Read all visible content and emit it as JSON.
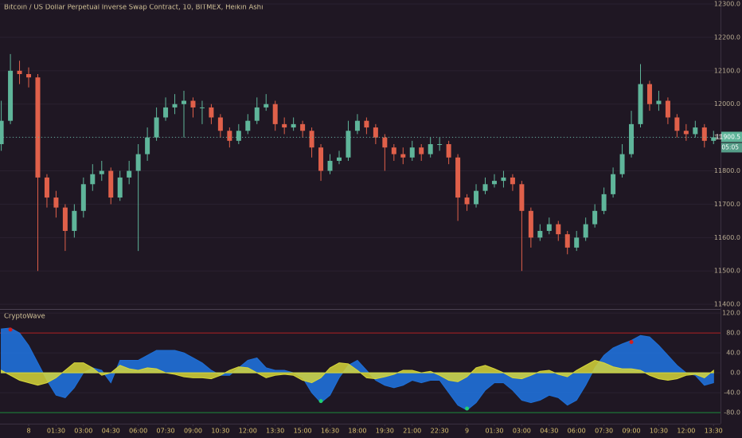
{
  "chart_data": [
    {
      "type": "candlestick",
      "title": "Bitcoin / US Dollar Perpetual Inverse Swap Contract, 10, BITMEX, Heikin Ashi",
      "categories": [
        null,
        null,
        null,
        "8",
        null,
        null,
        "01:30",
        null,
        null,
        "03:00",
        null,
        null,
        "04:30",
        null,
        null,
        "06:00",
        null,
        null,
        "07:30",
        null,
        null,
        "09:00",
        null,
        null,
        "10:30",
        null,
        null,
        "12:00",
        null,
        null,
        "13:30",
        null,
        null,
        "15:00",
        null,
        null,
        "16:30",
        null,
        null,
        "18:00",
        null,
        null,
        "19:30",
        null,
        null,
        "21:00",
        null,
        null,
        "22:30",
        null,
        null,
        "9",
        null,
        null,
        "01:30",
        null,
        null,
        "03:00",
        null,
        null,
        "04:30",
        null,
        null,
        "06:00",
        null,
        null,
        "07:30",
        null,
        null,
        "09:00",
        null,
        null,
        "10:30",
        null,
        null,
        "12:00",
        null,
        null,
        "13:30"
      ],
      "open": [
        11880,
        11950,
        12100,
        12090,
        12080,
        11780,
        11720,
        11690,
        11620,
        11680,
        11760,
        11790,
        11800,
        11720,
        11780,
        11800,
        11850,
        11900,
        11960,
        11990,
        12000,
        12010,
        11990,
        11990,
        11960,
        11920,
        11890,
        11920,
        11950,
        11990,
        12000,
        11940,
        11930,
        11940,
        11920,
        11870,
        11800,
        11830,
        11840,
        11920,
        11950,
        11930,
        11900,
        11870,
        11850,
        11840,
        11870,
        11850,
        11880,
        11880,
        11840,
        11720,
        11700,
        11740,
        11760,
        11770,
        11780,
        11760,
        11680,
        11600,
        11620,
        11640,
        11610,
        11570,
        11600,
        11640,
        11680,
        11730,
        11790,
        11850,
        11940,
        12060,
        12000,
        12010,
        11960,
        11920,
        11910,
        11930,
        11890
      ],
      "high": [
        12010,
        12150,
        12130,
        12110,
        12090,
        11790,
        11740,
        11700,
        11700,
        11780,
        11820,
        11830,
        11810,
        11800,
        11830,
        11880,
        11930,
        11990,
        12020,
        12030,
        12040,
        12020,
        12010,
        12000,
        11970,
        11930,
        11940,
        11970,
        12020,
        12030,
        12010,
        11960,
        11960,
        11950,
        11930,
        11880,
        11850,
        11860,
        11950,
        11970,
        11960,
        11940,
        11910,
        11880,
        11870,
        11890,
        11880,
        11900,
        11900,
        11890,
        11850,
        11730,
        11760,
        11780,
        11790,
        11800,
        11790,
        11770,
        11690,
        11640,
        11660,
        11650,
        11620,
        11620,
        11660,
        11700,
        11750,
        11810,
        11880,
        11980,
        12120,
        12070,
        12040,
        12020,
        11970,
        11940,
        11950,
        11940,
        11920
      ],
      "low": [
        11860,
        11940,
        12060,
        12050,
        11500,
        11690,
        11660,
        11560,
        11600,
        11660,
        11740,
        11770,
        11700,
        11710,
        11760,
        11560,
        11830,
        11890,
        11950,
        11970,
        11900,
        11960,
        11940,
        11940,
        11900,
        11870,
        11880,
        11910,
        11940,
        11980,
        11920,
        11910,
        11920,
        11900,
        11840,
        11770,
        11790,
        11820,
        11830,
        11910,
        11910,
        11880,
        11800,
        11830,
        11820,
        11830,
        11830,
        11840,
        11860,
        11820,
        11650,
        11680,
        11690,
        11730,
        11750,
        11750,
        11740,
        11500,
        11570,
        11590,
        11610,
        11590,
        11550,
        11560,
        11590,
        11630,
        11670,
        11720,
        11780,
        11840,
        11930,
        11980,
        11980,
        11940,
        11900,
        11890,
        11900,
        11870,
        11880
      ],
      "close": [
        11950,
        12100,
        12090,
        12080,
        11780,
        11720,
        11690,
        11620,
        11680,
        11760,
        11790,
        11800,
        11720,
        11780,
        11800,
        11850,
        11900,
        11960,
        11990,
        12000,
        12010,
        11990,
        11990,
        11960,
        11920,
        11890,
        11920,
        11950,
        11990,
        12000,
        11940,
        11930,
        11940,
        11920,
        11870,
        11800,
        11830,
        11840,
        11920,
        11950,
        11930,
        11900,
        11870,
        11850,
        11840,
        11870,
        11850,
        11880,
        11880,
        11840,
        11720,
        11700,
        11740,
        11760,
        11770,
        11780,
        11760,
        11680,
        11600,
        11620,
        11640,
        11610,
        11570,
        11600,
        11640,
        11680,
        11730,
        11790,
        11850,
        11940,
        12060,
        12000,
        12010,
        11960,
        11920,
        11910,
        11930,
        11890,
        11900.5
      ],
      "up_color": "#5fb59a",
      "down_color": "#e0604a",
      "countdown": "05:05",
      "ylim": [
        11386,
        12312
      ],
      "yticks": [
        {
          "value": 12300,
          "label": "12300.0"
        },
        {
          "value": 12200,
          "label": "12200.0"
        },
        {
          "value": 12100,
          "label": "12100.0"
        },
        {
          "value": 12000,
          "label": "12000.0"
        },
        {
          "value": 11900,
          "label": "11900.0"
        },
        {
          "value": 11800,
          "label": "11800.0"
        },
        {
          "value": 11700,
          "label": "11700.0"
        },
        {
          "value": 11600,
          "label": "11600.0"
        },
        {
          "value": 11500,
          "label": "11500.0"
        },
        {
          "value": 11400,
          "label": "11400.0"
        }
      ]
    },
    {
      "type": "area",
      "title": "CryptoWave",
      "series": [
        {
          "color": "#1f6fd6",
          "values": [
            88,
            90,
            80,
            55,
            20,
            -15,
            -45,
            -50,
            -30,
            0,
            10,
            5,
            -20,
            25,
            25,
            25,
            35,
            45,
            45,
            45,
            40,
            30,
            20,
            5,
            -5,
            -5,
            10,
            25,
            30,
            10,
            5,
            5,
            0,
            -10,
            -40,
            -60,
            -45,
            -10,
            15,
            25,
            5,
            -15,
            -25,
            -30,
            -25,
            -15,
            -20,
            -15,
            -15,
            -40,
            -65,
            -75,
            -60,
            -35,
            -20,
            -20,
            -35,
            -55,
            -60,
            -55,
            -45,
            -50,
            -65,
            -55,
            -25,
            10,
            35,
            50,
            58,
            65,
            75,
            72,
            55,
            35,
            15,
            0,
            -5,
            -25,
            -20
          ]
        },
        {
          "color": "#d6d63a",
          "values": [
            5,
            -5,
            -15,
            -20,
            -25,
            -20,
            -10,
            5,
            20,
            20,
            10,
            -5,
            0,
            15,
            8,
            5,
            10,
            8,
            0,
            -3,
            -8,
            -10,
            -10,
            -12,
            -5,
            5,
            12,
            10,
            0,
            -10,
            -5,
            -3,
            -5,
            -15,
            -20,
            -10,
            10,
            20,
            18,
            5,
            -10,
            -12,
            -8,
            -3,
            5,
            5,
            0,
            3,
            -5,
            -15,
            -18,
            -8,
            10,
            15,
            8,
            0,
            -10,
            -12,
            -5,
            3,
            5,
            -3,
            -8,
            5,
            15,
            25,
            20,
            12,
            8,
            8,
            5,
            -5,
            -12,
            -15,
            -12,
            -5,
            -3,
            -10,
            5
          ]
        }
      ],
      "levels": [
        80,
        -80
      ],
      "level_colors": [
        "#b02020",
        "#1a8a3a"
      ],
      "sell_signals": [
        1,
        69
      ],
      "buy_signals": [
        35,
        51
      ],
      "sell_color": "#d02020",
      "buy_color": "#20d070",
      "ylim": [
        -99,
        125
      ],
      "yticks": [
        {
          "value": 120,
          "label": "120.0"
        },
        {
          "value": 80,
          "label": "80.0"
        },
        {
          "value": 40,
          "label": "40.0"
        },
        {
          "value": 0,
          "label": "0.0"
        },
        {
          "value": -40,
          "label": "-40.0"
        },
        {
          "value": -80,
          "label": "-80.0"
        }
      ]
    }
  ]
}
